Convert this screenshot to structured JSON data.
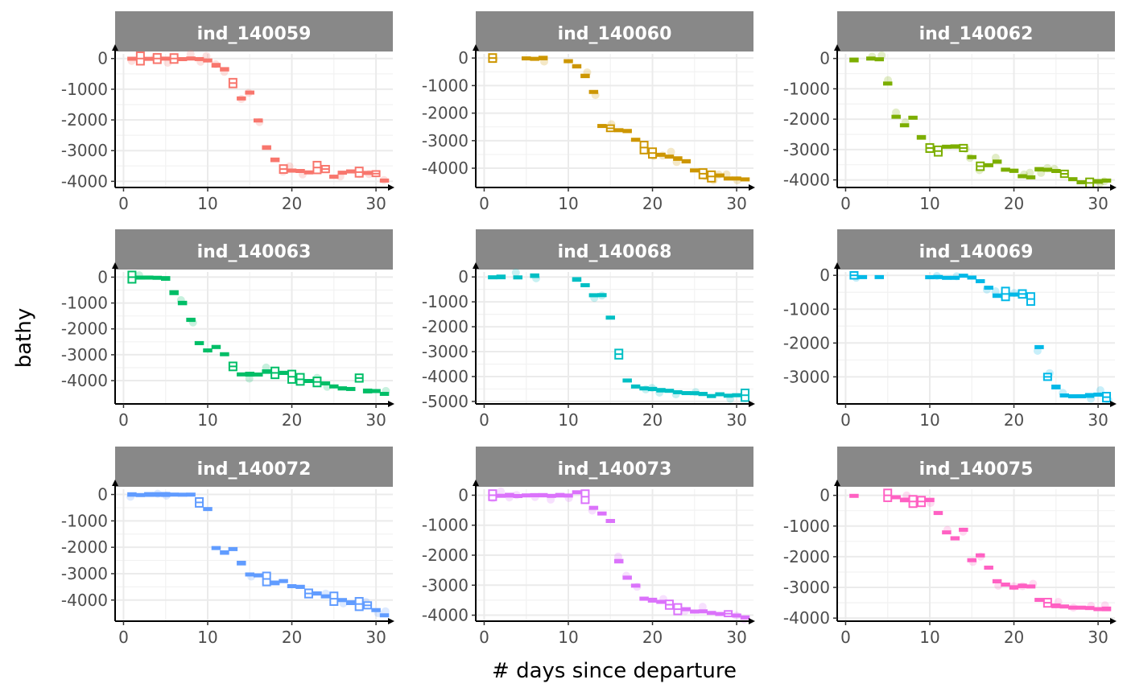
{
  "chart_data": {
    "type": "boxplot",
    "xlabel": "# days since departure",
    "ylabel": "bathy",
    "xlim": [
      -1,
      32
    ],
    "xticks": [
      0,
      10,
      20,
      30
    ],
    "grid": true,
    "legend": "none",
    "panels": [
      {
        "name": "ind_140059",
        "color": "#F8766D",
        "ylim": [
          -4200,
          150
        ],
        "yticks": [
          0,
          -1000,
          -2000,
          -3000,
          -4000
        ],
        "points": [
          [
            1,
            0
          ],
          [
            2,
            0
          ],
          [
            3,
            0
          ],
          [
            4,
            0
          ],
          [
            5,
            0
          ],
          [
            6,
            0
          ],
          [
            7,
            0
          ],
          [
            8,
            0
          ],
          [
            9,
            0
          ],
          [
            10,
            -50
          ],
          [
            11,
            -220
          ],
          [
            12,
            -350
          ],
          [
            13,
            -800
          ],
          [
            14,
            -1300
          ],
          [
            15,
            -1100
          ],
          [
            16,
            -2000
          ],
          [
            17,
            -2900
          ],
          [
            18,
            -3300
          ],
          [
            19,
            -3600
          ],
          [
            20,
            -3650
          ],
          [
            21,
            -3650
          ],
          [
            22,
            -3700
          ],
          [
            23,
            -3550
          ],
          [
            24,
            -3600
          ],
          [
            25,
            -3850
          ],
          [
            26,
            -3700
          ],
          [
            27,
            -3650
          ],
          [
            28,
            -3700
          ],
          [
            29,
            -3700
          ],
          [
            30,
            -3750
          ],
          [
            31,
            -3950
          ]
        ]
      },
      {
        "name": "ind_140060",
        "color": "#CD9600",
        "ylim": [
          -4700,
          150
        ],
        "yticks": [
          0,
          -1000,
          -2000,
          -3000,
          -4000
        ],
        "points": [
          [
            1,
            0
          ],
          [
            5,
            0
          ],
          [
            6,
            0
          ],
          [
            7,
            0
          ],
          [
            10,
            -100
          ],
          [
            11,
            -300
          ],
          [
            12,
            -650
          ],
          [
            13,
            -1200
          ],
          [
            14,
            -2450
          ],
          [
            15,
            -2550
          ],
          [
            16,
            -2600
          ],
          [
            17,
            -2650
          ],
          [
            18,
            -2950
          ],
          [
            19,
            -3250
          ],
          [
            20,
            -3450
          ],
          [
            21,
            -3500
          ],
          [
            22,
            -3550
          ],
          [
            23,
            -3650
          ],
          [
            24,
            -3750
          ],
          [
            25,
            -4050
          ],
          [
            26,
            -4200
          ],
          [
            27,
            -4300
          ],
          [
            28,
            -4250
          ],
          [
            29,
            -4350
          ],
          [
            30,
            -4350
          ],
          [
            31,
            -4400
          ]
        ]
      },
      {
        "name": "ind_140062",
        "color": "#7CAE00",
        "ylim": [
          -4250,
          150
        ],
        "yticks": [
          0,
          -1000,
          -2000,
          -3000,
          -4000
        ],
        "points": [
          [
            1,
            -50
          ],
          [
            3,
            0
          ],
          [
            4,
            0
          ],
          [
            5,
            -800
          ],
          [
            6,
            -1900
          ],
          [
            7,
            -2200
          ],
          [
            8,
            -1950
          ],
          [
            9,
            -2600
          ],
          [
            10,
            -2950
          ],
          [
            11,
            -3050
          ],
          [
            12,
            -2900
          ],
          [
            13,
            -2900
          ],
          [
            14,
            -2950
          ],
          [
            15,
            -3250
          ],
          [
            16,
            -3550
          ],
          [
            17,
            -3500
          ],
          [
            18,
            -3400
          ],
          [
            19,
            -3650
          ],
          [
            20,
            -3700
          ],
          [
            21,
            -3850
          ],
          [
            22,
            -3900
          ],
          [
            23,
            -3650
          ],
          [
            24,
            -3650
          ],
          [
            25,
            -3700
          ],
          [
            26,
            -3800
          ],
          [
            27,
            -3950
          ],
          [
            28,
            -4050
          ],
          [
            29,
            -4100
          ],
          [
            30,
            -4050
          ],
          [
            31,
            -4000
          ]
        ]
      },
      {
        "name": "ind_140063",
        "color": "#00BE67",
        "ylim": [
          -4900,
          200
        ],
        "yticks": [
          0,
          -1000,
          -2000,
          -3000,
          -4000
        ],
        "points": [
          [
            1,
            0
          ],
          [
            2,
            0
          ],
          [
            3,
            0
          ],
          [
            4,
            0
          ],
          [
            5,
            -50
          ],
          [
            6,
            -600
          ],
          [
            7,
            -1000
          ],
          [
            8,
            -1650
          ],
          [
            9,
            -2550
          ],
          [
            10,
            -2800
          ],
          [
            11,
            -2700
          ],
          [
            12,
            -2950
          ],
          [
            13,
            -3450
          ],
          [
            14,
            -3750
          ],
          [
            15,
            -3750
          ],
          [
            16,
            -3750
          ],
          [
            17,
            -3650
          ],
          [
            18,
            -3700
          ],
          [
            19,
            -3700
          ],
          [
            20,
            -3850
          ],
          [
            21,
            -3950
          ],
          [
            22,
            -4000
          ],
          [
            23,
            -4050
          ],
          [
            24,
            -4100
          ],
          [
            25,
            -4200
          ],
          [
            26,
            -4300
          ],
          [
            27,
            -4300
          ],
          [
            28,
            -3900
          ],
          [
            29,
            -4400
          ],
          [
            30,
            -4400
          ],
          [
            31,
            -4500
          ]
        ]
      },
      {
        "name": "ind_140068",
        "color": "#00BFC4",
        "ylim": [
          -5100,
          200
        ],
        "yticks": [
          0,
          -1000,
          -2000,
          -3000,
          -4000,
          -5000
        ],
        "points": [
          [
            1,
            0
          ],
          [
            2,
            0
          ],
          [
            4,
            0
          ],
          [
            6,
            50
          ],
          [
            11,
            -100
          ],
          [
            12,
            -300
          ],
          [
            13,
            -700
          ],
          [
            14,
            -700
          ],
          [
            15,
            -1600
          ],
          [
            16,
            -3100
          ],
          [
            17,
            -4150
          ],
          [
            18,
            -4400
          ],
          [
            19,
            -4450
          ],
          [
            20,
            -4500
          ],
          [
            21,
            -4550
          ],
          [
            22,
            -4550
          ],
          [
            23,
            -4600
          ],
          [
            24,
            -4650
          ],
          [
            25,
            -4650
          ],
          [
            26,
            -4700
          ],
          [
            27,
            -4750
          ],
          [
            28,
            -4700
          ],
          [
            29,
            -4750
          ],
          [
            30,
            -4750
          ],
          [
            31,
            -4750
          ]
        ]
      },
      {
        "name": "ind_140069",
        "color": "#00B8E7",
        "ylim": [
          -3800,
          100
        ],
        "yticks": [
          0,
          -1000,
          -2000,
          -3000
        ],
        "points": [
          [
            1,
            0
          ],
          [
            2,
            -50
          ],
          [
            4,
            -50
          ],
          [
            10,
            -50
          ],
          [
            11,
            -50
          ],
          [
            12,
            -50
          ],
          [
            13,
            -50
          ],
          [
            14,
            0
          ],
          [
            15,
            -50
          ],
          [
            16,
            -150
          ],
          [
            17,
            -350
          ],
          [
            18,
            -600
          ],
          [
            19,
            -550
          ],
          [
            20,
            -550
          ],
          [
            21,
            -550
          ],
          [
            22,
            -700
          ],
          [
            23,
            -2100
          ],
          [
            24,
            -3000
          ],
          [
            25,
            -3300
          ],
          [
            26,
            -3550
          ],
          [
            27,
            -3550
          ],
          [
            28,
            -3550
          ],
          [
            29,
            -3550
          ],
          [
            30,
            -3500
          ],
          [
            31,
            -3600
          ]
        ]
      },
      {
        "name": "ind_140072",
        "color": "#619CFF",
        "ylim": [
          -4800,
          200
        ],
        "yticks": [
          0,
          -1000,
          -2000,
          -3000,
          -4000
        ],
        "points": [
          [
            1,
            0
          ],
          [
            2,
            0
          ],
          [
            3,
            0
          ],
          [
            4,
            0
          ],
          [
            5,
            0
          ],
          [
            6,
            0
          ],
          [
            7,
            0
          ],
          [
            8,
            0
          ],
          [
            9,
            -300
          ],
          [
            10,
            -550
          ],
          [
            11,
            -2000
          ],
          [
            12,
            -2200
          ],
          [
            13,
            -2050
          ],
          [
            14,
            -2600
          ],
          [
            15,
            -3000
          ],
          [
            16,
            -3050
          ],
          [
            17,
            -3200
          ],
          [
            18,
            -3350
          ],
          [
            19,
            -3250
          ],
          [
            20,
            -3450
          ],
          [
            21,
            -3500
          ],
          [
            22,
            -3750
          ],
          [
            23,
            -3750
          ],
          [
            24,
            -3850
          ],
          [
            25,
            -3950
          ],
          [
            26,
            -4000
          ],
          [
            27,
            -4100
          ],
          [
            28,
            -4150
          ],
          [
            29,
            -4200
          ],
          [
            30,
            -4350
          ],
          [
            31,
            -4550
          ]
        ]
      },
      {
        "name": "ind_140073",
        "color": "#DB72FB",
        "ylim": [
          -4200,
          200
        ],
        "yticks": [
          0,
          -1000,
          -2000,
          -3000,
          -4000
        ],
        "points": [
          [
            1,
            0
          ],
          [
            2,
            0
          ],
          [
            3,
            0
          ],
          [
            4,
            0
          ],
          [
            5,
            0
          ],
          [
            6,
            0
          ],
          [
            7,
            0
          ],
          [
            8,
            0
          ],
          [
            9,
            0
          ],
          [
            10,
            0
          ],
          [
            11,
            100
          ],
          [
            12,
            -50
          ],
          [
            13,
            -400
          ],
          [
            14,
            -600
          ],
          [
            15,
            -850
          ],
          [
            16,
            -2200
          ],
          [
            17,
            -2750
          ],
          [
            18,
            -3000
          ],
          [
            19,
            -3450
          ],
          [
            20,
            -3500
          ],
          [
            21,
            -3550
          ],
          [
            22,
            -3650
          ],
          [
            23,
            -3800
          ],
          [
            24,
            -3800
          ],
          [
            25,
            -3850
          ],
          [
            26,
            -3850
          ],
          [
            27,
            -3900
          ],
          [
            28,
            -3950
          ],
          [
            29,
            -3950
          ],
          [
            30,
            -4000
          ],
          [
            31,
            -4050
          ]
        ]
      },
      {
        "name": "ind_140075",
        "color": "#FF61C3",
        "ylim": [
          -4100,
          200
        ],
        "yticks": [
          0,
          -1000,
          -2000,
          -3000,
          -4000
        ],
        "points": [
          [
            1,
            0
          ],
          [
            5,
            0
          ],
          [
            6,
            -50
          ],
          [
            7,
            -150
          ],
          [
            8,
            -200
          ],
          [
            9,
            -200
          ],
          [
            10,
            -150
          ],
          [
            11,
            -550
          ],
          [
            12,
            -1200
          ],
          [
            13,
            -1400
          ],
          [
            14,
            -1100
          ],
          [
            15,
            -2100
          ],
          [
            16,
            -1950
          ],
          [
            17,
            -2350
          ],
          [
            18,
            -2800
          ],
          [
            19,
            -2900
          ],
          [
            20,
            -3000
          ],
          [
            21,
            -2950
          ],
          [
            22,
            -2950
          ],
          [
            23,
            -3400
          ],
          [
            24,
            -3500
          ],
          [
            25,
            -3600
          ],
          [
            26,
            -3600
          ],
          [
            27,
            -3650
          ],
          [
            28,
            -3650
          ],
          [
            29,
            -3650
          ],
          [
            30,
            -3700
          ],
          [
            31,
            -3700
          ]
        ]
      }
    ]
  }
}
